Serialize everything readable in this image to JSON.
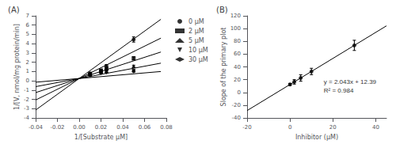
{
  "chart_data": [
    {
      "type": "scatter",
      "title": "(A)",
      "x_label": "1/[Substrate μM]",
      "y_label": "1/[V, nmol/mg protein/min]",
      "xlim": [
        -0.04,
        0.08
      ],
      "ylim": [
        -4,
        7
      ],
      "xticks": [
        -0.04,
        -0.02,
        {
          "value": 0,
          "label": "0.00"
        },
        0.02,
        0.04,
        0.06,
        0.08
      ],
      "yticks": [
        -4,
        -3,
        -2,
        -1,
        0,
        1,
        2,
        3,
        4,
        5,
        6,
        7
      ],
      "grid": false,
      "legend": "right",
      "series": [
        {
          "name": "0 μM",
          "color": "#000000",
          "marker": "circle",
          "x": [
            0.01,
            0.02,
            0.025,
            0.05
          ],
          "values": [
            0.6,
            1.05,
            1.6,
            4.45
          ],
          "y_err": [
            0.06,
            0.09,
            0.15,
            0.28
          ],
          "fit_x": [
            -0.04,
            0.075
          ],
          "fit_values": [
            -3.15,
            6.625
          ]
        },
        {
          "name": "2 μM",
          "color": "#000000",
          "marker": "square",
          "x": [
            0.01,
            0.02,
            0.025,
            0.05
          ],
          "values": [
            0.72,
            1.12,
            1.32,
            2.42
          ],
          "y_err": [
            0.07,
            0.09,
            0.1,
            0.18
          ],
          "fit_x": [
            -0.04,
            0.075
          ],
          "fit_values": [
            -2.07,
            4.6
          ]
        },
        {
          "name": "5 μM",
          "color": "#000000",
          "marker": "triangle_up",
          "x": [
            0.01,
            0.02,
            0.025,
            0.05
          ],
          "values": [
            0.76,
            1.02,
            1.3,
            1.58
          ],
          "y_err": [
            0.06,
            0.07,
            0.09,
            0.1
          ],
          "fit_x": [
            -0.04,
            0.075
          ],
          "fit_values": [
            -1.27,
            3.1
          ]
        },
        {
          "name": "10 μM",
          "color": "#000000",
          "marker": "triangle_down",
          "x": [
            0.01,
            0.02,
            0.025,
            0.05
          ],
          "values": [
            0.78,
            0.87,
            1.0,
            1.08
          ],
          "y_err": [
            0.05,
            0.07,
            0.08,
            0.09
          ],
          "fit_x": [
            -0.04,
            0.075
          ],
          "fit_values": [
            -0.63,
            1.9
          ]
        },
        {
          "name": "30 μM",
          "color": "#000000",
          "marker": "diamond",
          "x": [
            0.01,
            0.02,
            0.025,
            0.05
          ],
          "values": [
            0.8,
            0.84,
            0.9,
            1.0
          ],
          "y_err": [
            0.04,
            0.05,
            0.06,
            0.07
          ],
          "fit_x": [
            -0.04,
            0.075
          ],
          "fit_values": [
            -0.15,
            1.0
          ]
        }
      ]
    },
    {
      "type": "scatter",
      "title": "(B)",
      "x_label": "Inhibitor (μM)",
      "y_label": "Slope of the primary plot",
      "xlim": [
        -20,
        45
      ],
      "ylim": [
        -40,
        120
      ],
      "xticks": [
        -20,
        0,
        20,
        40
      ],
      "yticks": [
        -40,
        -20,
        0,
        20,
        40,
        60,
        80,
        100,
        120
      ],
      "grid": false,
      "annotations": [
        "y = 2.043x + 12.39",
        "R² = 0.984"
      ],
      "series": [
        {
          "color": "#000000",
          "marker": "circle",
          "x": [
            0,
            2,
            5,
            10,
            30
          ],
          "values": [
            12.5,
            16.5,
            22.6,
            32.8,
            73.7
          ],
          "y_err": [
            1.5,
            3.5,
            5.0,
            5.0,
            8.0
          ],
          "fit_x": [
            -20,
            45
          ],
          "fit_values": [
            -28.47,
            104.325
          ]
        }
      ]
    }
  ]
}
